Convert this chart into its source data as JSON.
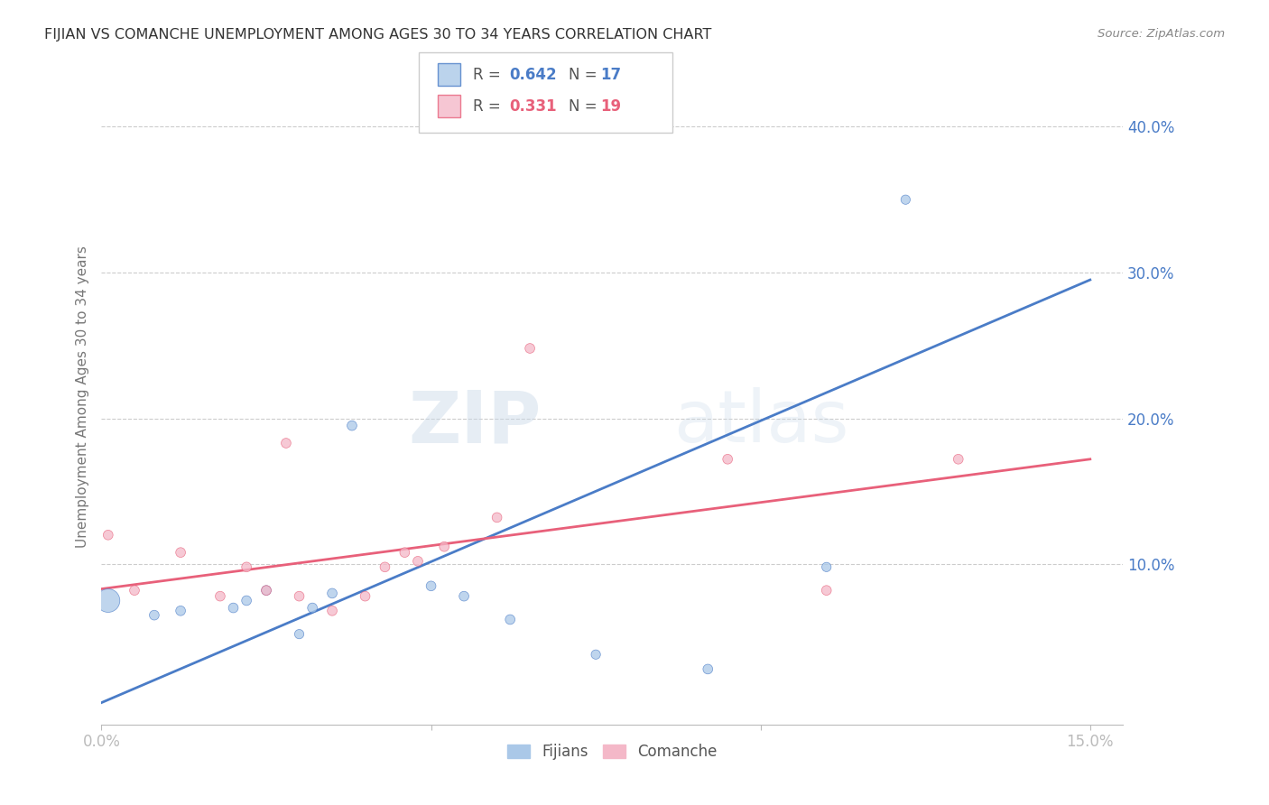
{
  "title": "FIJIAN VS COMANCHE UNEMPLOYMENT AMONG AGES 30 TO 34 YEARS CORRELATION CHART",
  "source": "Source: ZipAtlas.com",
  "ylabel": "Unemployment Among Ages 30 to 34 years",
  "xlim": [
    0.0,
    0.155
  ],
  "ylim": [
    -0.01,
    0.44
  ],
  "xticks": [
    0.0,
    0.05,
    0.1,
    0.15
  ],
  "xticklabels": [
    "0.0%",
    "",
    "",
    "15.0%"
  ],
  "yticks_right": [
    0.1,
    0.2,
    0.3,
    0.4
  ],
  "ytick_labels_right": [
    "10.0%",
    "20.0%",
    "30.0%",
    "40.0%"
  ],
  "background_color": "#ffffff",
  "grid_color": "#cccccc",
  "fijian_color": "#aac8e8",
  "comanche_color": "#f4b8c8",
  "fijian_line_color": "#4a7cc7",
  "comanche_line_color": "#e8607a",
  "legend_fijian_R": "0.642",
  "legend_fijian_N": "17",
  "legend_comanche_R": "0.331",
  "legend_comanche_N": "19",
  "watermark_text": "ZIP",
  "watermark_text2": "atlas",
  "fijian_x": [
    0.001,
    0.008,
    0.012,
    0.02,
    0.022,
    0.025,
    0.03,
    0.032,
    0.035,
    0.038,
    0.05,
    0.055,
    0.062,
    0.075,
    0.092,
    0.11,
    0.122
  ],
  "fijian_y": [
    0.075,
    0.065,
    0.068,
    0.07,
    0.075,
    0.082,
    0.052,
    0.07,
    0.08,
    0.195,
    0.085,
    0.078,
    0.062,
    0.038,
    0.028,
    0.098,
    0.35
  ],
  "fijian_size": [
    350,
    60,
    60,
    60,
    60,
    60,
    55,
    60,
    60,
    60,
    60,
    60,
    60,
    55,
    60,
    55,
    55
  ],
  "comanche_x": [
    0.001,
    0.005,
    0.012,
    0.018,
    0.022,
    0.025,
    0.028,
    0.03,
    0.035,
    0.04,
    0.043,
    0.046,
    0.048,
    0.052,
    0.06,
    0.065,
    0.095,
    0.11,
    0.13
  ],
  "comanche_y": [
    0.12,
    0.082,
    0.108,
    0.078,
    0.098,
    0.082,
    0.183,
    0.078,
    0.068,
    0.078,
    0.098,
    0.108,
    0.102,
    0.112,
    0.132,
    0.248,
    0.172,
    0.082,
    0.172
  ],
  "comanche_size": [
    60,
    60,
    60,
    60,
    60,
    60,
    60,
    60,
    60,
    60,
    60,
    60,
    60,
    60,
    60,
    60,
    60,
    60,
    60
  ],
  "fijian_trendline_x": [
    0.0,
    0.15
  ],
  "fijian_trendline_y": [
    0.005,
    0.295
  ],
  "comanche_trendline_x": [
    0.0,
    0.15
  ],
  "comanche_trendline_y": [
    0.083,
    0.172
  ]
}
